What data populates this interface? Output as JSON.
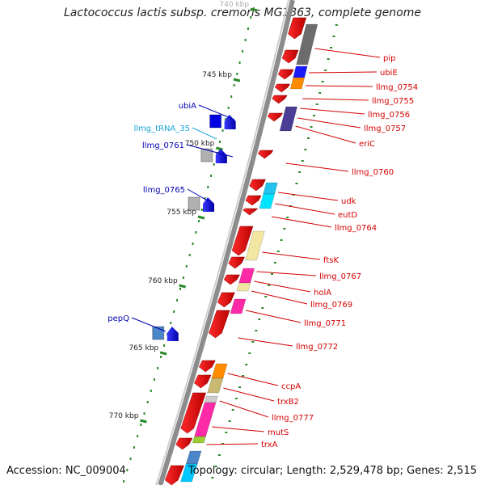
{
  "title": "Lactococcus lactis subsp. cremoris MG1363, complete genome",
  "footer": {
    "accession": "Accession: NC_009004",
    "summary": "Topology: circular; Length: 2,529,478 bp; Genes: 2,515"
  },
  "colors": {
    "red_label": "#d40000",
    "blue_label": "#0000b4",
    "cyan_label": "#1aa3d6",
    "backbone": "#8c8c8c",
    "ruler": "#2a8a2a"
  },
  "ticks": [
    {
      "kbp": 740,
      "label": "740 kbp"
    },
    {
      "kbp": 745,
      "label": "745 kbp"
    },
    {
      "kbp": 750,
      "label": "750 kbp"
    },
    {
      "kbp": 755,
      "label": "755 kbp"
    },
    {
      "kbp": 760,
      "label": "760 kbp"
    },
    {
      "kbp": 765,
      "label": "765 kbp"
    },
    {
      "kbp": 770,
      "label": "770 kbp"
    }
  ],
  "right_genes": [
    {
      "label": "pip",
      "color": "red"
    },
    {
      "label": "ubiE",
      "color": "red"
    },
    {
      "label": "llmg_0754",
      "color": "red"
    },
    {
      "label": "llmg_0755",
      "color": "red"
    },
    {
      "label": "llmg_0756",
      "color": "red"
    },
    {
      "label": "llmg_0757",
      "color": "red"
    },
    {
      "label": "eriC",
      "color": "red"
    },
    {
      "label": "llmg_0760",
      "color": "red"
    },
    {
      "label": "udk",
      "color": "red"
    },
    {
      "label": "eutD",
      "color": "red"
    },
    {
      "label": "llmg_0764",
      "color": "red"
    },
    {
      "label": "ftsK",
      "color": "red"
    },
    {
      "label": "llmg_0767",
      "color": "red"
    },
    {
      "label": "holA",
      "color": "red"
    },
    {
      "label": "llmg_0769",
      "color": "red"
    },
    {
      "label": "llmg_0771",
      "color": "red"
    },
    {
      "label": "llmg_0772",
      "color": "red"
    },
    {
      "label": "ccpA",
      "color": "red"
    },
    {
      "label": "trxB2",
      "color": "red"
    },
    {
      "label": "llmg_0777",
      "color": "red"
    },
    {
      "label": "mutS",
      "color": "red"
    },
    {
      "label": "trxA",
      "color": "red"
    }
  ],
  "left_genes": [
    {
      "label": "ubiA",
      "color": "blue"
    },
    {
      "label": "llmg_tRNA_35",
      "color": "cyan"
    },
    {
      "label": "llmg_0761",
      "color": "blue"
    },
    {
      "label": "llmg_0765",
      "color": "blue"
    },
    {
      "label": "pepQ",
      "color": "blue"
    }
  ]
}
